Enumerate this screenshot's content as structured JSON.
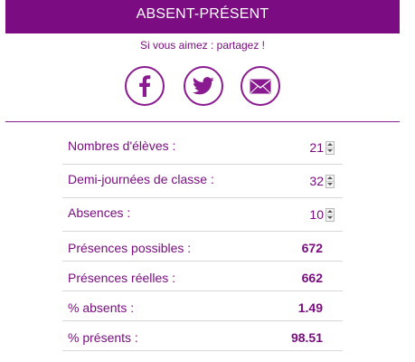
{
  "header": {
    "title": "ABSENT-PRÉSENT"
  },
  "share": {
    "text": "Si vous aimez : partagez !",
    "buttons": [
      {
        "icon": "facebook-icon"
      },
      {
        "icon": "twitter-icon"
      },
      {
        "icon": "mail-icon"
      }
    ]
  },
  "colors": {
    "brand": "#7b0c82",
    "text": "#7a0e80",
    "row_border": "#d8d8d8"
  },
  "form": {
    "rows": [
      {
        "label": "Nombres d'élèves :",
        "value": "21"
      },
      {
        "label": "Demi-journées de classe :",
        "value": "32"
      },
      {
        "label": "Absences :",
        "value": "10"
      }
    ],
    "results": [
      {
        "label": "Présences possibles :",
        "value": "672"
      },
      {
        "label": "Présences réelles :",
        "value": "662"
      },
      {
        "label": "% absents :",
        "value": "1.49"
      },
      {
        "label": "% présents :",
        "value": "98.51"
      }
    ]
  }
}
